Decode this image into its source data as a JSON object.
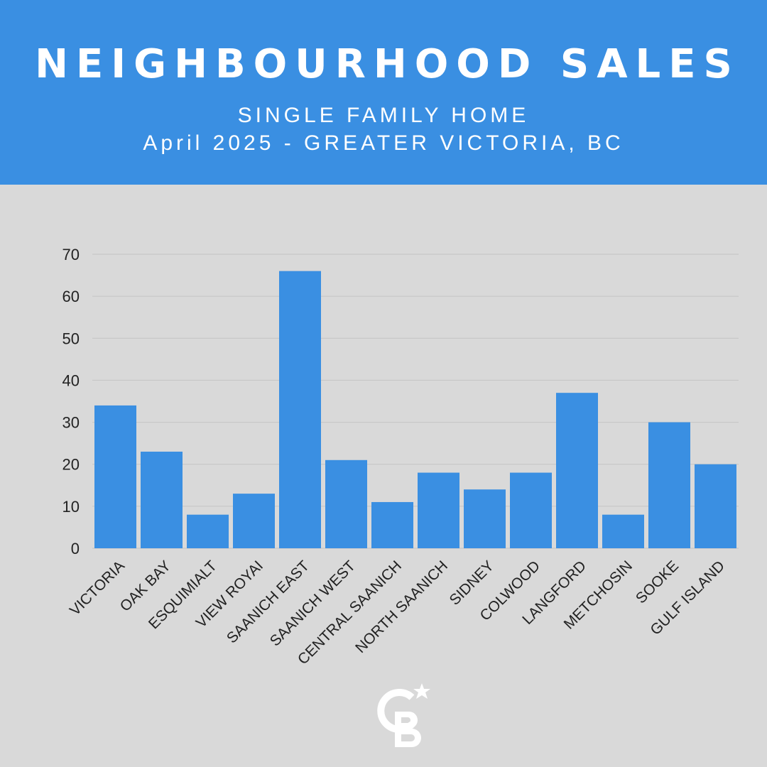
{
  "header": {
    "title": "NEIGHBOURHOOD SALES",
    "subtitle_line1": "SINGLE FAMILY HOME",
    "subtitle_line2": "April 2025 - GREATER VICTORIA, BC",
    "background_color": "#3a8fe2"
  },
  "chart_data": {
    "type": "bar",
    "title": "",
    "xlabel": "",
    "ylabel": "",
    "ylim": [
      0,
      70
    ],
    "yticks": [
      0,
      10,
      20,
      30,
      40,
      50,
      60,
      70
    ],
    "grid": true,
    "categories": [
      "VICTORIA",
      "OAK BAY",
      "ESQUIMIALT",
      "VIEW ROYAI",
      "SAANICH EAST",
      "SAANICH WEST",
      "CENTRAL SAANICH",
      "NORTH SAANICH",
      "SIDNEY",
      "COLWOOD",
      "LANGFORD",
      "METCHOSIN",
      "SOOKE",
      "GULF ISLAND"
    ],
    "values": [
      34,
      23,
      8,
      13,
      66,
      21,
      11,
      18,
      14,
      18,
      37,
      8,
      30,
      20
    ],
    "bar_color": "#3a8fe2"
  },
  "logo": {
    "icon": "coldwell-banker-cb-logo",
    "color": "#ffffff"
  }
}
